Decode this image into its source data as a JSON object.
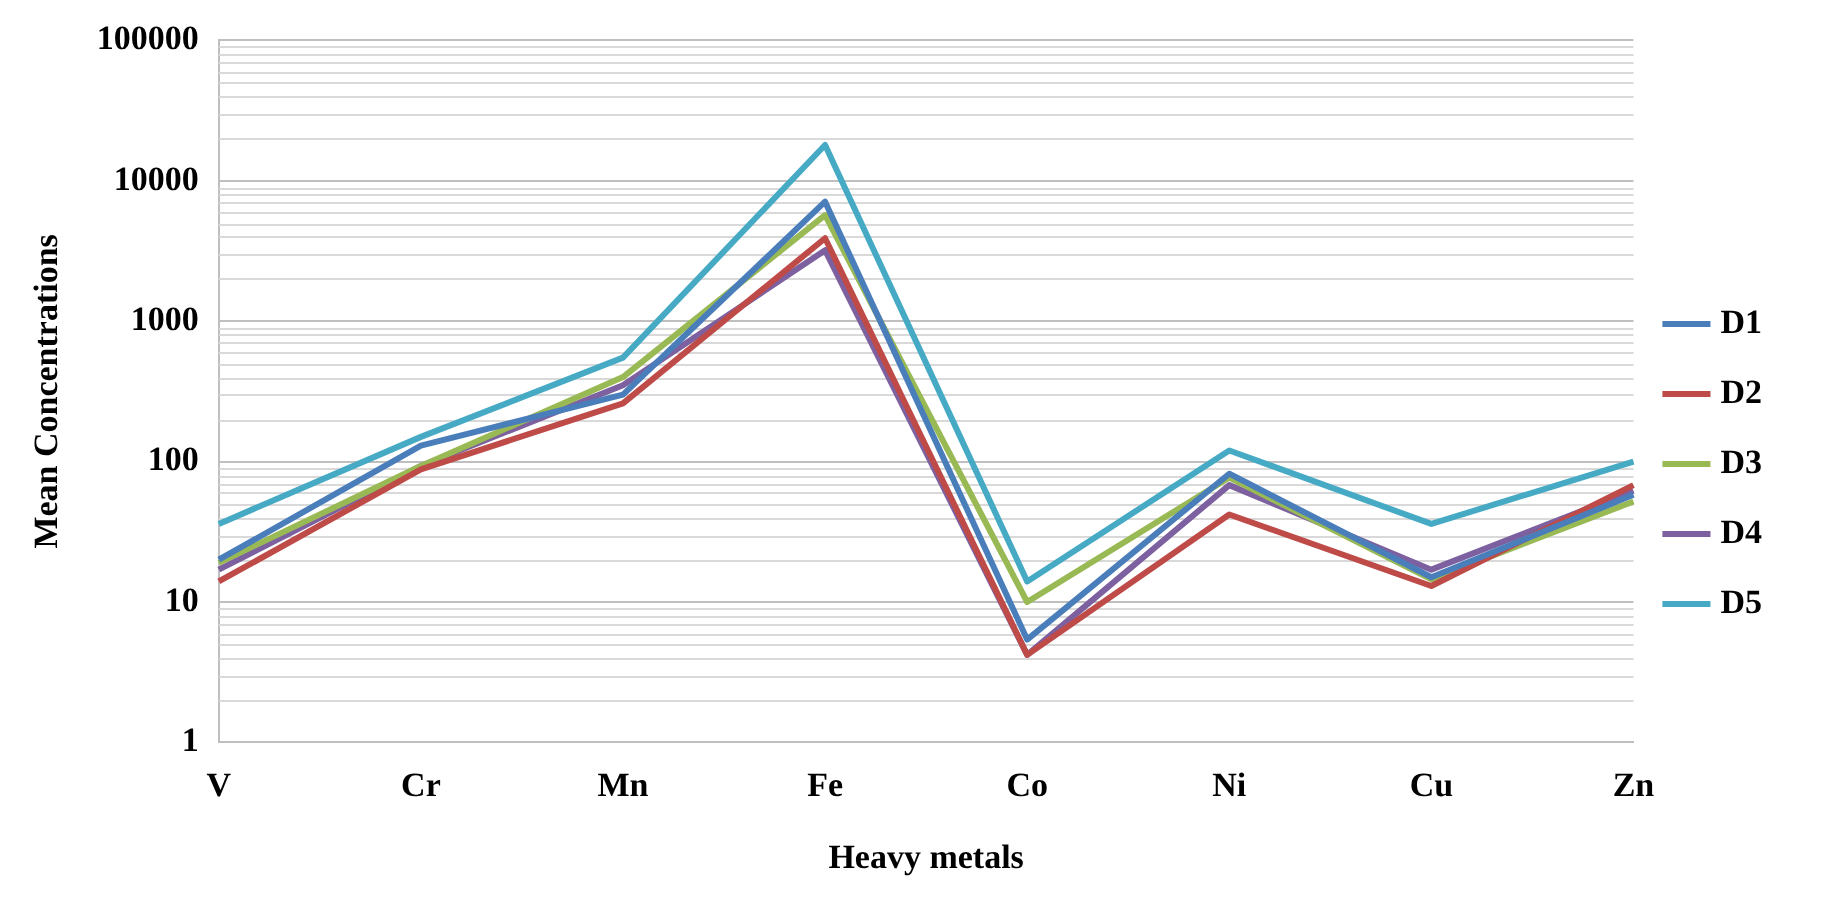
{
  "chart_data": {
    "type": "line",
    "xlabel": "Heavy metals",
    "ylabel": "Mean Concentrations",
    "categories": [
      "V",
      "Cr",
      "Mn",
      "Fe",
      "Co",
      "Ni",
      "Cu",
      "Zn"
    ],
    "series": [
      {
        "name": "D1",
        "color": "#4a7ebb",
        "values": [
          20,
          130,
          300,
          7100,
          5.4,
          82,
          15,
          58
        ]
      },
      {
        "name": "D2",
        "color": "#be4b48",
        "values": [
          14,
          88,
          260,
          3900,
          4.2,
          42,
          13,
          68
        ]
      },
      {
        "name": "D3",
        "color": "#98b954",
        "values": [
          19,
          93,
          400,
          5700,
          10,
          77,
          14.5,
          52
        ]
      },
      {
        "name": "D4",
        "color": "#7d60a0",
        "values": [
          17,
          93,
          350,
          3200,
          4.2,
          68,
          17,
          62
        ]
      },
      {
        "name": "D5",
        "color": "#46aac5",
        "values": [
          36,
          150,
          550,
          18000,
          14,
          120,
          36,
          100
        ]
      }
    ],
    "log": "y",
    "ylim": [
      1,
      100000
    ],
    "yticks": [
      1,
      10,
      100,
      1000,
      10000,
      100000
    ],
    "grid": "y",
    "legend": "right",
    "marker": "none",
    "line_style": "solid"
  }
}
